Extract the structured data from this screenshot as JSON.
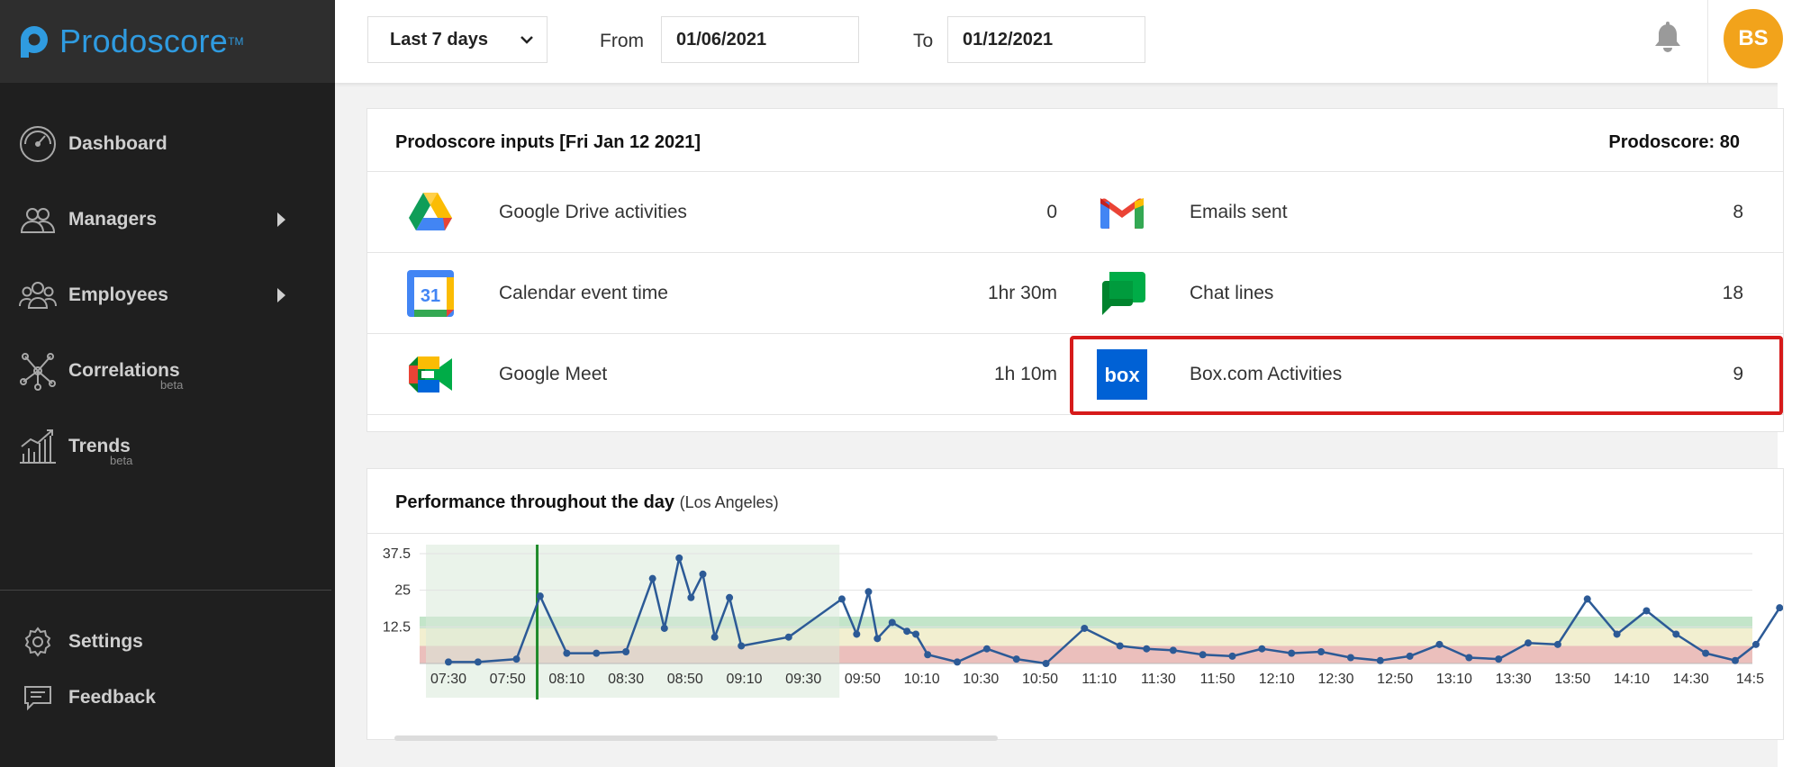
{
  "brand": {
    "name": "Prodoscore",
    "tm": "TM",
    "color": "#2f9be0"
  },
  "sidebar": {
    "items": [
      {
        "label": "Dashboard",
        "icon": "speedometer-icon",
        "sub": "",
        "has_arrow": false
      },
      {
        "label": "Managers",
        "icon": "managers-icon",
        "sub": "",
        "has_arrow": true
      },
      {
        "label": "Employees",
        "icon": "employees-icon",
        "sub": "",
        "has_arrow": true
      },
      {
        "label": "Correlations",
        "icon": "network-icon",
        "sub": "beta",
        "has_arrow": false
      },
      {
        "label": "Trends",
        "icon": "trends-icon",
        "sub": "beta",
        "has_arrow": false
      }
    ],
    "bottom": [
      {
        "label": "Settings",
        "icon": "gear-icon"
      },
      {
        "label": "Feedback",
        "icon": "feedback-icon"
      }
    ]
  },
  "topbar": {
    "range_select": "Last 7 days",
    "from_label": "From",
    "from_value": "01/06/2021",
    "to_label": "To",
    "to_value": "01/12/2021",
    "avatar_initials": "BS",
    "avatar_color": "#f2a31b"
  },
  "inputs_card": {
    "title": "Prodoscore inputs [Fri Jan 12 2021]",
    "score": "Prodoscore: 80",
    "left": [
      {
        "name": "Google Drive activities",
        "value": "0",
        "icon": "google-drive-icon"
      },
      {
        "name": "Calendar event time",
        "value": "1hr 30m",
        "icon": "google-calendar-icon",
        "icon_text": "31"
      },
      {
        "name": "Google Meet",
        "value": "1h 10m",
        "icon": "google-meet-icon"
      }
    ],
    "right": [
      {
        "name": "Emails sent",
        "value": "8",
        "icon": "gmail-icon"
      },
      {
        "name": "Chat lines",
        "value": "18",
        "icon": "google-chat-icon"
      },
      {
        "name": "Box.com Activities",
        "value": "9",
        "icon": "box-icon",
        "icon_text": "box",
        "highlighted": true
      }
    ],
    "highlight_color": "#d61a1a"
  },
  "chart_card": {
    "title": "Performance throughout the day",
    "subtitle": "(Los Angeles)"
  },
  "chart_data": {
    "type": "line",
    "title": "Performance throughout the day",
    "x_tick_labels": [
      "07:30",
      "07:50",
      "08:10",
      "08:30",
      "08:50",
      "09:10",
      "09:30",
      "09:50",
      "10:10",
      "10:30",
      "10:50",
      "11:10",
      "11:30",
      "11:50",
      "12:10",
      "12:30",
      "12:50",
      "13:10",
      "13:30",
      "13:50",
      "14:10",
      "14:30",
      "14:5"
    ],
    "y_tick_labels": [
      "37.5",
      "25",
      "12.5"
    ],
    "ylim": [
      0,
      37.5
    ],
    "x_unit": "minutes since 07:30 (tick every 20 min)",
    "series": [
      {
        "color": "#2c5a96",
        "points": [
          [
            0,
            0.5
          ],
          [
            10,
            0.5
          ],
          [
            23,
            1.5
          ],
          [
            31,
            23
          ],
          [
            40,
            3.5
          ],
          [
            50,
            3.5
          ],
          [
            60,
            4
          ],
          [
            69,
            29
          ],
          [
            73,
            12
          ],
          [
            78,
            36
          ],
          [
            82,
            22.5
          ],
          [
            86,
            30.5
          ],
          [
            90,
            9
          ],
          [
            95,
            22.5
          ],
          [
            99,
            6
          ],
          [
            115,
            9
          ],
          [
            133,
            22
          ],
          [
            138,
            10
          ],
          [
            142,
            24.5
          ],
          [
            145,
            8.5
          ],
          [
            150,
            14
          ],
          [
            155,
            11
          ],
          [
            158,
            10
          ],
          [
            162,
            3
          ],
          [
            172,
            0.5
          ],
          [
            182,
            5
          ],
          [
            192,
            1.5
          ],
          [
            202,
            0
          ],
          [
            215,
            12
          ],
          [
            227,
            6
          ],
          [
            236,
            5
          ],
          [
            245,
            4.5
          ],
          [
            255,
            3
          ],
          [
            265,
            2.5
          ],
          [
            275,
            5
          ],
          [
            285,
            3.5
          ],
          [
            295,
            4
          ],
          [
            305,
            2
          ],
          [
            315,
            1
          ],
          [
            325,
            2.5
          ],
          [
            335,
            6.5
          ],
          [
            345,
            2
          ],
          [
            355,
            1.5
          ],
          [
            365,
            7
          ],
          [
            375,
            6.5
          ],
          [
            385,
            22
          ],
          [
            395,
            10
          ],
          [
            405,
            18
          ],
          [
            415,
            10
          ],
          [
            425,
            3.5
          ],
          [
            435,
            1
          ],
          [
            442,
            6.5
          ],
          [
            450,
            19
          ]
        ]
      }
    ],
    "bands": [
      {
        "from": 0,
        "to": 6,
        "color": "#e8b4b0"
      },
      {
        "from": 6,
        "to": 12,
        "color": "#f0ecc8"
      },
      {
        "from": 12,
        "to": 16,
        "color": "#b8e0c0"
      }
    ],
    "selected_window": {
      "from": 0,
      "to": 120,
      "color": "#d8ead8"
    },
    "marker_x": 30,
    "marker_color": "#1e8a2a"
  }
}
